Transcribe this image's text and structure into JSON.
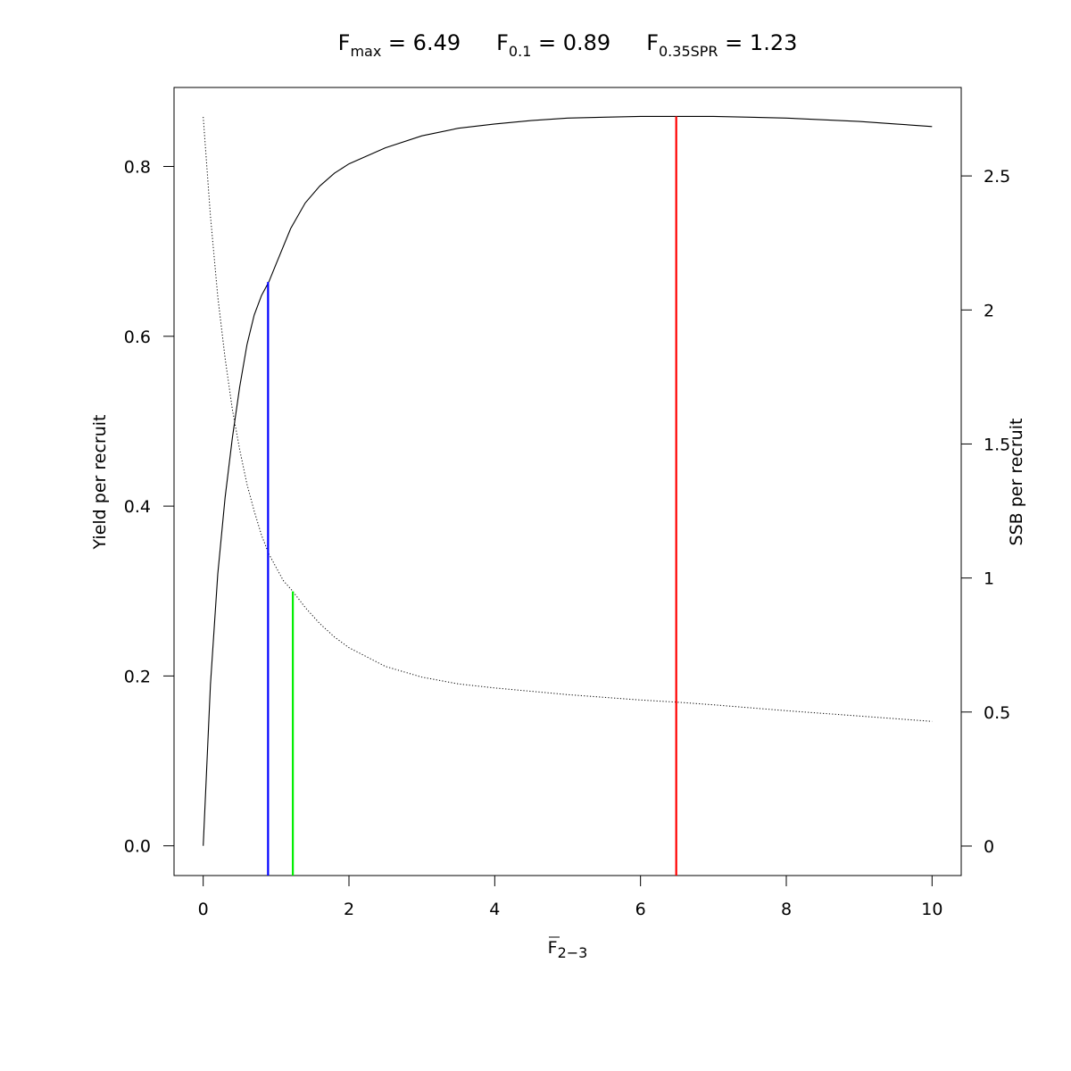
{
  "chart_data": {
    "type": "line",
    "title": {
      "fmax": {
        "symbol": "F",
        "sub": "max",
        "eq": " = ",
        "value": "6.49"
      },
      "f01": {
        "symbol": "F",
        "sub": "0.1",
        "eq": " = ",
        "value": "0.89"
      },
      "fspr": {
        "symbol": "F",
        "sub": "0.35SPR",
        "eq": " = ",
        "value": "1.23"
      }
    },
    "xlabel": {
      "symbol": "F",
      "sub": "2−3"
    },
    "ylabel": "Yield per recruit",
    "y2label": "SSB per recruit",
    "xlim": [
      -0.4,
      10.4
    ],
    "ylim": [
      -0.035,
      0.893
    ],
    "y2lim": [
      -0.11,
      2.83
    ],
    "xticks": [
      "0",
      "2",
      "4",
      "6",
      "8",
      "10"
    ],
    "yticks": [
      "0.0",
      "0.2",
      "0.4",
      "0.6",
      "0.8"
    ],
    "y2ticks": [
      "0",
      "0.5",
      "1",
      "1.5",
      "2",
      "2.5"
    ],
    "series": [
      {
        "axis": "left",
        "style": "solid",
        "color": "#000000",
        "x": [
          0,
          0.1,
          0.2,
          0.3,
          0.4,
          0.5,
          0.6,
          0.7,
          0.8,
          0.9,
          1.0,
          1.2,
          1.4,
          1.6,
          1.8,
          2.0,
          2.5,
          3.0,
          3.5,
          4.0,
          4.5,
          5.0,
          5.5,
          6.0,
          6.49,
          7.0,
          7.5,
          8.0,
          8.5,
          9.0,
          9.5,
          10.0
        ],
        "y": [
          0.0,
          0.19,
          0.32,
          0.41,
          0.48,
          0.54,
          0.59,
          0.625,
          0.648,
          0.664,
          0.685,
          0.727,
          0.757,
          0.777,
          0.792,
          0.803,
          0.822,
          0.836,
          0.845,
          0.85,
          0.854,
          0.857,
          0.858,
          0.859,
          0.859,
          0.859,
          0.858,
          0.857,
          0.855,
          0.853,
          0.85,
          0.847
        ]
      },
      {
        "axis": "right",
        "style": "dotted",
        "color": "#000000",
        "x": [
          0,
          0.1,
          0.2,
          0.3,
          0.4,
          0.5,
          0.6,
          0.7,
          0.8,
          0.9,
          1.0,
          1.1,
          1.23,
          1.4,
          1.6,
          1.8,
          2.0,
          2.5,
          3.0,
          3.5,
          4.0,
          5.0,
          6.0,
          6.49,
          7.0,
          8.0,
          9.0,
          10.0
        ],
        "y": [
          2.72,
          2.35,
          2.05,
          1.82,
          1.63,
          1.48,
          1.35,
          1.25,
          1.16,
          1.09,
          1.04,
          0.99,
          0.95,
          0.89,
          0.83,
          0.78,
          0.74,
          0.67,
          0.63,
          0.605,
          0.59,
          0.565,
          0.545,
          0.537,
          0.527,
          0.505,
          0.485,
          0.465
        ]
      }
    ],
    "reference_lines": [
      {
        "x": 0.89,
        "y_top": 0.664,
        "axis": "left",
        "color": "#0000ff"
      },
      {
        "x": 1.23,
        "y_top": 0.95,
        "axis": "right",
        "color": "#00ee00"
      },
      {
        "x": 6.49,
        "y_top": 0.859,
        "axis": "left",
        "color": "#ff0000"
      }
    ]
  }
}
